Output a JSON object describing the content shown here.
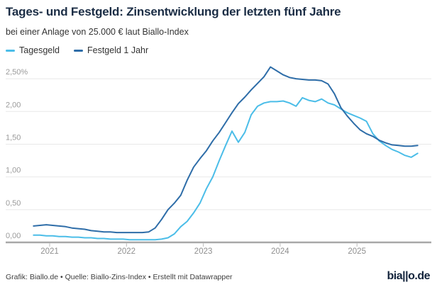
{
  "header": {
    "title": "Tages- und Festgeld: Zinsentwicklung der letzten fünf Jahre",
    "subtitle": "bei einer Anlage von 25.000 € laut Biallo-Index"
  },
  "legend": {
    "items": [
      {
        "label": "Tagesgeld",
        "color": "#4bbde8"
      },
      {
        "label": "Festgeld 1 Jahr",
        "color": "#2e6da8"
      }
    ]
  },
  "chart_data": {
    "type": "line",
    "title": "Tages- und Festgeld: Zinsentwicklung der letzten fünf Jahre",
    "subtitle": "bei einer Anlage von 25.000 € laut Biallo-Index",
    "unit": "%",
    "grid": true,
    "legend_position": "top",
    "x_start_year": 2020.79,
    "x_step_years": 0.08333,
    "xlim": [
      2020.75,
      2025.95
    ],
    "ylim": [
      0,
      2.75
    ],
    "x_ticks": [
      "2021",
      "2022",
      "2023",
      "2024",
      "2025"
    ],
    "y_ticks": [
      {
        "value": 0.0,
        "label": "0,00"
      },
      {
        "value": 0.5,
        "label": "0,50"
      },
      {
        "value": 1.0,
        "label": "1,00"
      },
      {
        "value": 1.5,
        "label": "1,50"
      },
      {
        "value": 2.0,
        "label": "2,00"
      },
      {
        "value": 2.5,
        "label": "2,50%"
      }
    ],
    "series": [
      {
        "name": "Tagesgeld",
        "color": "#4bbde8",
        "values": [
          0.11,
          0.11,
          0.1,
          0.1,
          0.09,
          0.09,
          0.08,
          0.08,
          0.07,
          0.07,
          0.06,
          0.06,
          0.05,
          0.05,
          0.05,
          0.04,
          0.04,
          0.04,
          0.04,
          0.04,
          0.05,
          0.07,
          0.13,
          0.24,
          0.32,
          0.45,
          0.6,
          0.82,
          1.0,
          1.25,
          1.48,
          1.7,
          1.53,
          1.68,
          1.95,
          2.08,
          2.13,
          2.15,
          2.15,
          2.16,
          2.13,
          2.08,
          2.21,
          2.17,
          2.15,
          2.19,
          2.13,
          2.1,
          2.04,
          1.98,
          1.94,
          1.9,
          1.85,
          1.66,
          1.55,
          1.48,
          1.42,
          1.38,
          1.33,
          1.3,
          1.36
        ]
      },
      {
        "name": "Festgeld 1 Jahr",
        "color": "#2e6da8",
        "values": [
          0.25,
          0.26,
          0.27,
          0.26,
          0.25,
          0.24,
          0.22,
          0.21,
          0.2,
          0.18,
          0.17,
          0.16,
          0.16,
          0.15,
          0.15,
          0.15,
          0.15,
          0.15,
          0.16,
          0.22,
          0.35,
          0.5,
          0.6,
          0.72,
          0.95,
          1.15,
          1.28,
          1.4,
          1.55,
          1.68,
          1.83,
          1.98,
          2.12,
          2.22,
          2.33,
          2.43,
          2.53,
          2.68,
          2.62,
          2.56,
          2.52,
          2.5,
          2.49,
          2.48,
          2.48,
          2.47,
          2.42,
          2.27,
          2.06,
          1.93,
          1.82,
          1.72,
          1.66,
          1.62,
          1.56,
          1.52,
          1.49,
          1.48,
          1.47,
          1.47,
          1.48
        ]
      }
    ]
  },
  "footer": {
    "credit": "Grafik: Biallo.de • Quelle: Biallo-Zins-Index • Erstellt mit Datawrapper",
    "logo": "bia||o.de"
  },
  "colors": {
    "title": "#1b2d45",
    "body_text": "#333333",
    "axis_label": "#9b9b9b",
    "gridline": "#e8e8e8",
    "baseline": "#a8a8a8",
    "tagesgeld_line": "#4bbde8",
    "festgeld_line": "#2e6da8",
    "background": "#ffffff"
  }
}
